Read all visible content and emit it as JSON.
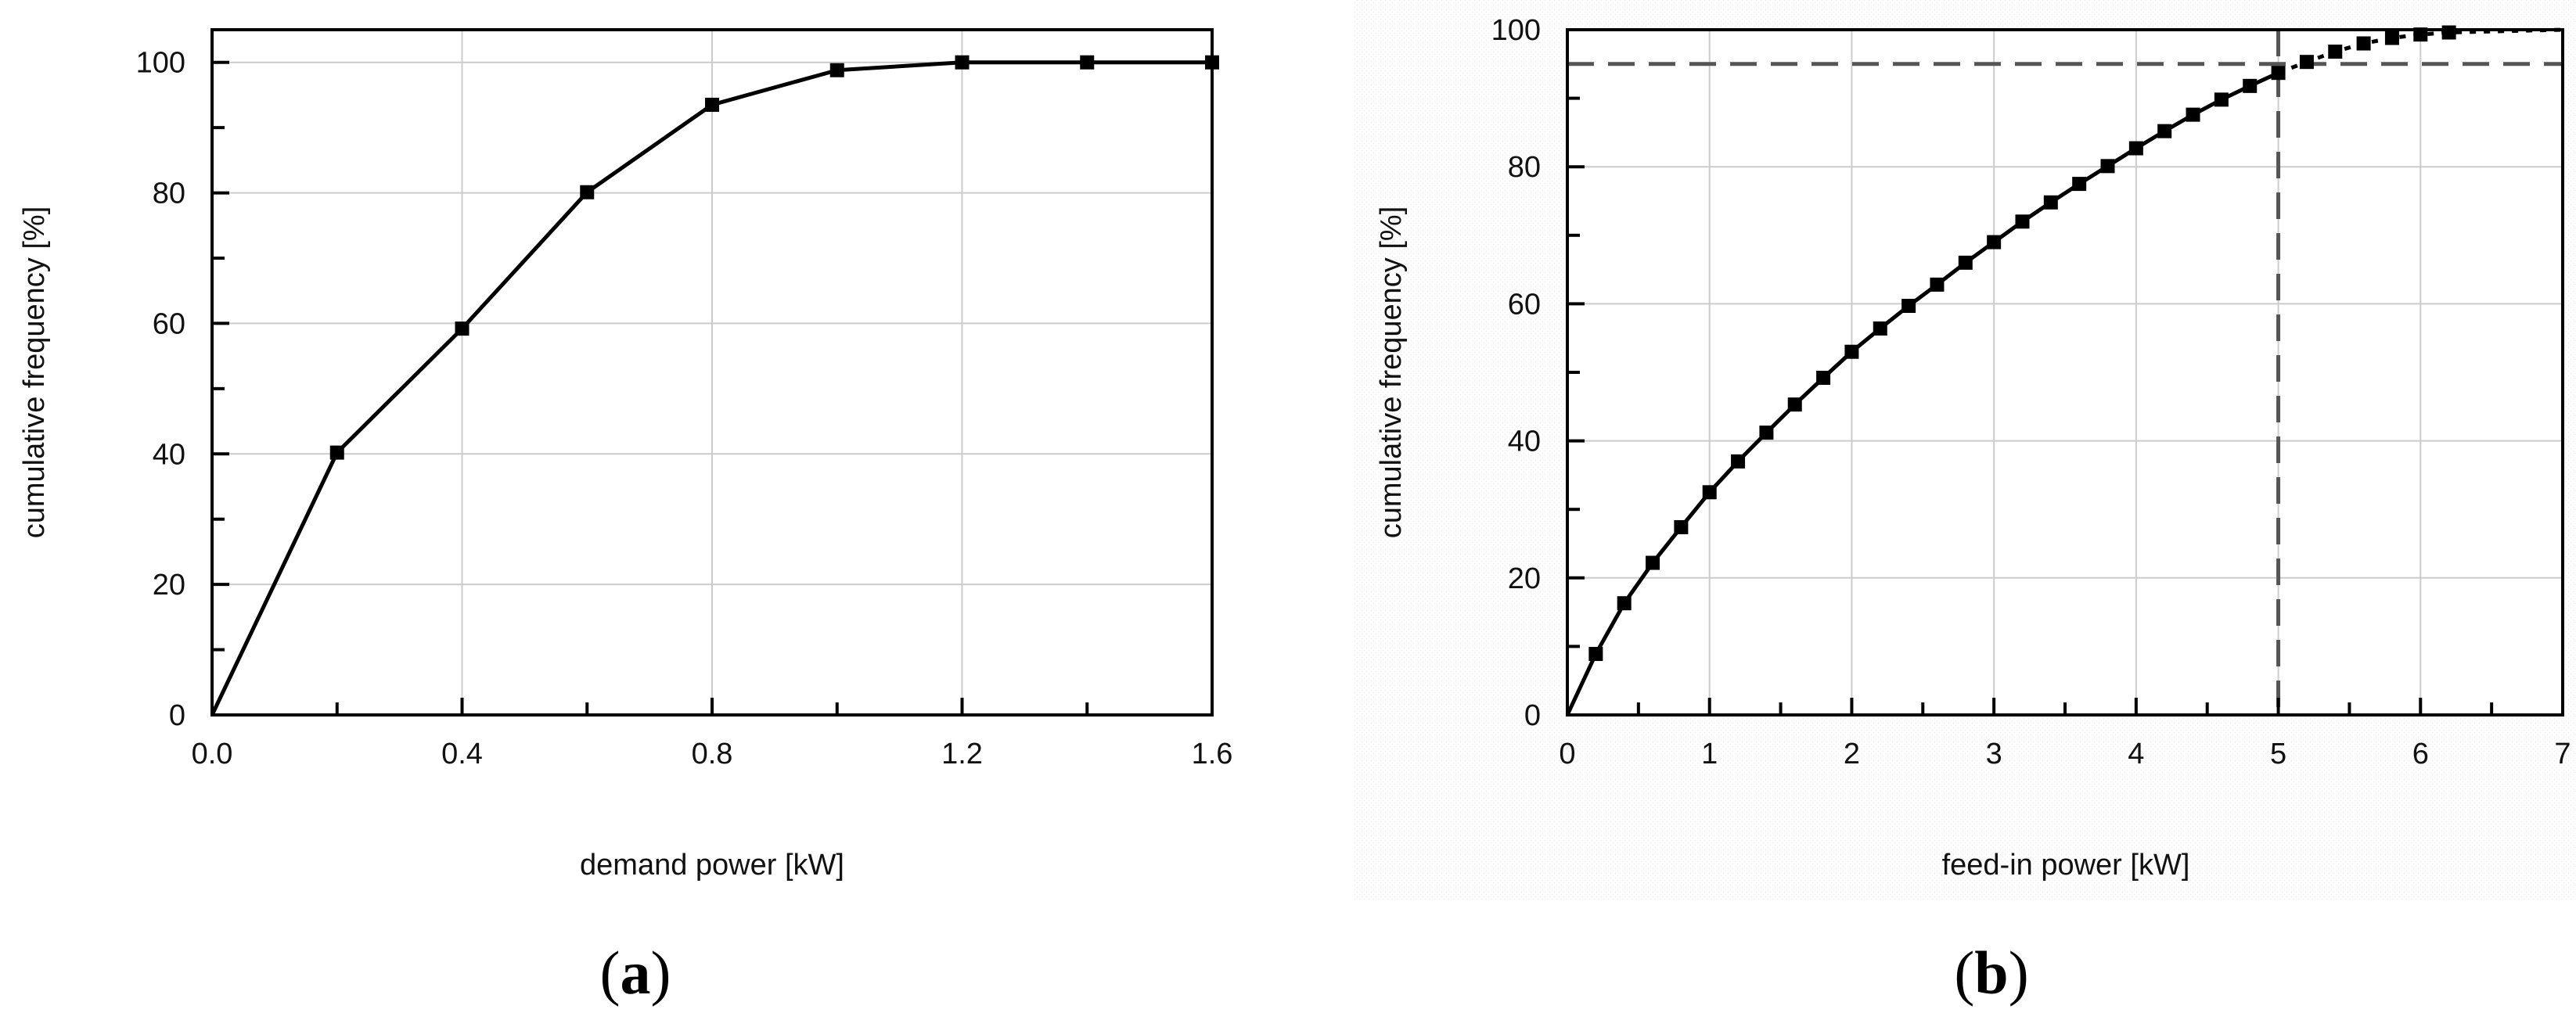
{
  "chart_data": [
    {
      "type": "line",
      "panel_label": {
        "open": "(",
        "letter": "a",
        "close": ")"
      },
      "xlabel": "demand power [kW]",
      "ylabel": "cumulative frequency [%]",
      "xlim": [
        0,
        1.6
      ],
      "ylim": [
        0,
        105
      ],
      "xticks": [
        "0.0",
        "0.4",
        "0.8",
        "1.2",
        "1.6"
      ],
      "xtick_values": [
        0,
        0.4,
        0.8,
        1.2,
        1.6
      ],
      "xminor_values": [
        0.2,
        0.6,
        1.0,
        1.4
      ],
      "yticks": [
        "0",
        "20",
        "40",
        "60",
        "80",
        "100"
      ],
      "ytick_values": [
        0,
        20,
        40,
        60,
        80,
        100
      ],
      "yminor_values": [
        10,
        30,
        50,
        70,
        90
      ],
      "grid": true,
      "series": [
        {
          "x": [
            0.0,
            0.2,
            0.4,
            0.6,
            0.8,
            1.0,
            1.2,
            1.4,
            1.6
          ],
          "y": [
            0,
            40.2,
            59.2,
            80.1,
            93.5,
            98.8,
            100,
            100,
            100
          ],
          "markers": [
            false,
            true,
            true,
            true,
            true,
            true,
            true,
            true,
            true
          ]
        }
      ],
      "reference_lines": []
    },
    {
      "type": "line",
      "panel_label": {
        "open": "(",
        "letter": "b",
        "close": ")"
      },
      "xlabel": "feed-in power [kW]",
      "ylabel": "cumulative frequency [%]",
      "xlim": [
        0,
        7
      ],
      "ylim": [
        0,
        100
      ],
      "xticks": [
        "0",
        "1",
        "2",
        "3",
        "4",
        "5",
        "6",
        "7"
      ],
      "xtick_values": [
        0,
        1,
        2,
        3,
        4,
        5,
        6,
        7
      ],
      "xminor_values": [
        0.5,
        1.5,
        2.5,
        3.5,
        4.5,
        5.5,
        6.5
      ],
      "yticks": [
        "0",
        "20",
        "40",
        "60",
        "80",
        "100"
      ],
      "ytick_values": [
        0,
        20,
        40,
        60,
        80,
        100
      ],
      "yminor_values": [
        10,
        30,
        50,
        70,
        90
      ],
      "grid": true,
      "series": [
        {
          "x": [
            0,
            0.2,
            0.4,
            0.6,
            0.8,
            1.0,
            1.2,
            1.4,
            1.6,
            1.8,
            2.0,
            2.2,
            2.4,
            2.6,
            2.8,
            3.0,
            3.2,
            3.4,
            3.6,
            3.8,
            4.0,
            4.2,
            4.4,
            4.6,
            4.8,
            5.0,
            5.2,
            5.4,
            5.6,
            5.8,
            6.0,
            6.2
          ],
          "y": [
            0,
            8.9,
            16.3,
            22.2,
            27.4,
            32.5,
            37.0,
            41.2,
            45.3,
            49.2,
            53.0,
            56.4,
            59.7,
            62.8,
            66.0,
            69.0,
            72.0,
            74.8,
            77.5,
            80.1,
            82.7,
            85.2,
            87.6,
            89.8,
            91.8,
            93.7,
            95.3,
            96.8,
            98.0,
            98.8,
            99.3,
            99.6
          ],
          "markers": [
            false,
            true,
            true,
            true,
            true,
            true,
            true,
            true,
            true,
            true,
            true,
            true,
            true,
            true,
            true,
            true,
            true,
            true,
            true,
            true,
            true,
            true,
            true,
            true,
            true,
            true,
            true,
            true,
            true,
            true,
            true,
            true
          ],
          "dashed_from_x": 5.0,
          "continues_to_x": 7.0,
          "continues_to_y": 100
        }
      ],
      "reference_lines": [
        {
          "orientation": "horizontal",
          "value": 95,
          "style": "dashed"
        },
        {
          "orientation": "vertical",
          "value": 5,
          "style": "dashed"
        }
      ]
    }
  ]
}
